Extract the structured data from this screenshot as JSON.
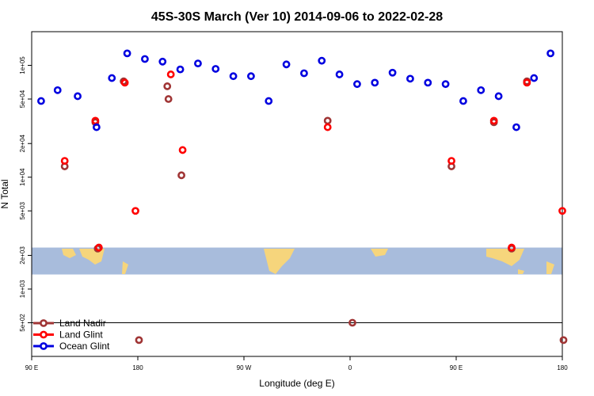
{
  "chart_data": {
    "type": "scatter",
    "title": "45S-30S March (Ver 10)   2014-09-06 to 2022-02-28",
    "xlabel": "Longitude (deg E)",
    "ylabel": "N Total",
    "xlim": [
      90,
      540
    ],
    "ylim_log": [
      250,
      200000
    ],
    "y_scale": "log",
    "x_ticks": [
      {
        "value": 90,
        "label": "90 E"
      },
      {
        "value": 180,
        "label": "180"
      },
      {
        "value": 270,
        "label": "90 W"
      },
      {
        "value": 360,
        "label": "0"
      },
      {
        "value": 450,
        "label": "90 E"
      },
      {
        "value": 540,
        "label": "180"
      }
    ],
    "y_ticks": [
      {
        "value": 500,
        "label": "5e+02"
      },
      {
        "value": 1000,
        "label": "1e+03"
      },
      {
        "value": 2000,
        "label": "2e+03"
      },
      {
        "value": 5000,
        "label": "5e+03"
      },
      {
        "value": 10000,
        "label": "1e+04"
      },
      {
        "value": 20000,
        "label": "2e+04"
      },
      {
        "value": 50000,
        "label": "5e+04"
      },
      {
        "value": 100000,
        "label": "1e+05"
      }
    ],
    "reference_line_y": 500,
    "map_band": {
      "y_min": 1350,
      "y_max": 2350
    },
    "series": [
      {
        "name": "Land Nadir",
        "color": "#a03535",
        "points": [
          [
            118,
            12500
          ],
          [
            144,
            31000
          ],
          [
            146,
            2300
          ],
          [
            206,
            50000
          ],
          [
            168,
            72000
          ],
          [
            205,
            65000
          ],
          [
            217,
            10400
          ],
          [
            341,
            32000
          ],
          [
            362,
            500
          ],
          [
            446,
            12500
          ],
          [
            482,
            31000
          ],
          [
            497,
            2300
          ],
          [
            510,
            72000
          ],
          [
            541,
            350
          ],
          [
            181,
            350
          ]
        ]
      },
      {
        "name": "Land Glint",
        "color": "#ff0000",
        "points": [
          [
            118,
            14000
          ],
          [
            144,
            32000
          ],
          [
            147,
            2350
          ],
          [
            178,
            5000
          ],
          [
            169,
            70000
          ],
          [
            208,
            83000
          ],
          [
            218,
            17500
          ],
          [
            341,
            28000
          ],
          [
            446,
            14000
          ],
          [
            482,
            32000
          ],
          [
            497,
            2350
          ],
          [
            510,
            70000
          ],
          [
            540,
            5000
          ]
        ]
      },
      {
        "name": "Ocean Glint",
        "color": "#0000e0",
        "points": [
          [
            98,
            48000
          ],
          [
            112,
            60000
          ],
          [
            129,
            53000
          ],
          [
            145,
            28000
          ],
          [
            158,
            77000
          ],
          [
            171,
            128000
          ],
          [
            186,
            114000
          ],
          [
            201,
            108000
          ],
          [
            216,
            92000
          ],
          [
            231,
            104000
          ],
          [
            246,
            93000
          ],
          [
            261,
            80000
          ],
          [
            276,
            80000
          ],
          [
            291,
            48000
          ],
          [
            306,
            102000
          ],
          [
            321,
            85000
          ],
          [
            336,
            110000
          ],
          [
            351,
            83000
          ],
          [
            366,
            68000
          ],
          [
            381,
            70000
          ],
          [
            396,
            86000
          ],
          [
            411,
            76000
          ],
          [
            426,
            70000
          ],
          [
            441,
            68000
          ],
          [
            456,
            48000
          ],
          [
            471,
            60000
          ],
          [
            486,
            53000
          ],
          [
            501,
            28000
          ],
          [
            516,
            77000
          ],
          [
            530,
            128000
          ]
        ]
      }
    ],
    "legend": {
      "placement": "bottom-left"
    }
  }
}
